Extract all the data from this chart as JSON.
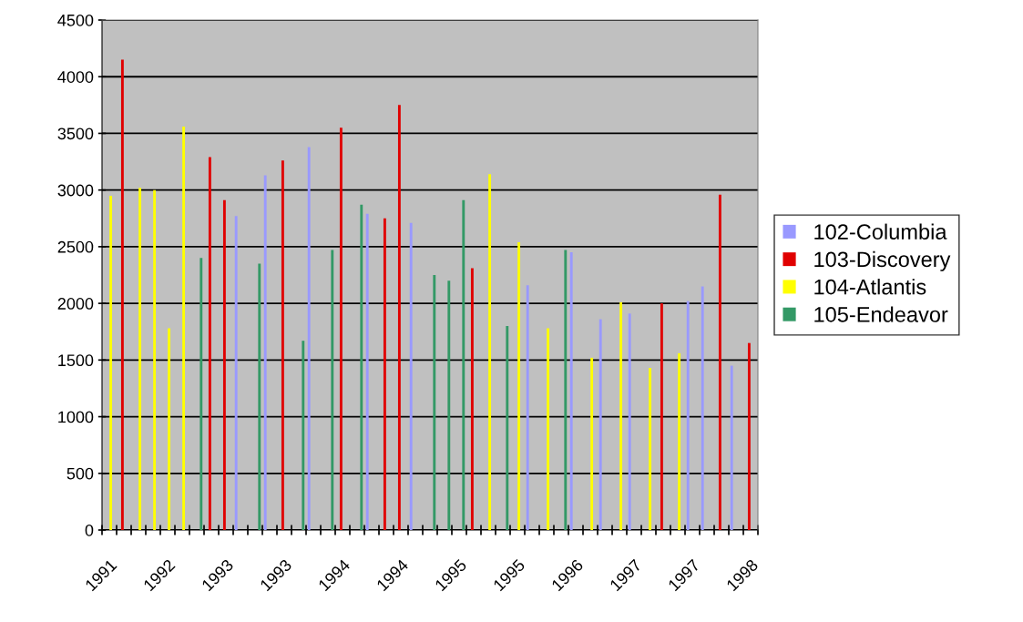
{
  "chart_data": {
    "type": "bar",
    "categories": [
      "1991",
      null,
      null,
      null,
      "1992",
      null,
      null,
      null,
      "1993",
      null,
      null,
      null,
      "1993",
      null,
      null,
      null,
      "1994",
      null,
      null,
      null,
      "1994",
      null,
      null,
      null,
      "1995",
      null,
      null,
      null,
      "1995",
      null,
      null,
      null,
      "1996",
      null,
      null,
      null,
      "1997",
      null,
      null,
      null,
      "1997",
      null,
      null,
      null,
      "1998"
    ],
    "series": [
      {
        "name": "102-Columbia",
        "color": "#9999ff",
        "values": [
          null,
          null,
          null,
          null,
          null,
          null,
          null,
          null,
          null,
          2770,
          null,
          3130,
          null,
          null,
          3380,
          null,
          null,
          null,
          2790,
          null,
          null,
          2710,
          null,
          null,
          null,
          null,
          null,
          null,
          null,
          2160,
          null,
          null,
          2450,
          null,
          1860,
          null,
          1910,
          null,
          null,
          null,
          2020,
          2150,
          null,
          1450,
          null
        ]
      },
      {
        "name": "103-Discovery",
        "color": "#e00000",
        "values": [
          null,
          4150,
          null,
          null,
          null,
          null,
          null,
          3290,
          2910,
          null,
          null,
          null,
          3260,
          null,
          null,
          null,
          3550,
          null,
          null,
          2750,
          3750,
          null,
          null,
          null,
          null,
          2310,
          null,
          null,
          null,
          null,
          null,
          null,
          null,
          null,
          null,
          null,
          null,
          null,
          2000,
          null,
          null,
          null,
          2960,
          null,
          1650
        ]
      },
      {
        "name": "104-Atlantis",
        "color": "#ffff00",
        "values": [
          2950,
          null,
          3020,
          3000,
          1780,
          3560,
          null,
          null,
          null,
          null,
          null,
          null,
          null,
          null,
          null,
          null,
          null,
          null,
          null,
          null,
          null,
          null,
          null,
          null,
          null,
          null,
          3140,
          null,
          2540,
          null,
          1780,
          null,
          null,
          1520,
          null,
          2010,
          null,
          1430,
          null,
          1560,
          null,
          null,
          null,
          null,
          null
        ]
      },
      {
        "name": "105-Endeavor",
        "color": "#339966",
        "values": [
          null,
          null,
          null,
          null,
          null,
          null,
          2400,
          null,
          null,
          null,
          2350,
          null,
          null,
          1670,
          null,
          2470,
          null,
          2870,
          null,
          null,
          null,
          null,
          2250,
          2200,
          2910,
          null,
          null,
          1800,
          null,
          null,
          null,
          2470,
          null,
          null,
          null,
          null,
          null,
          null,
          null,
          null,
          null,
          null,
          null,
          null,
          null
        ]
      }
    ],
    "ylim": [
      0,
      4500
    ],
    "yticks": [
      0,
      500,
      1000,
      1500,
      2000,
      2500,
      3000,
      3500,
      4000,
      4500
    ],
    "grid": "y",
    "legend": "right"
  }
}
